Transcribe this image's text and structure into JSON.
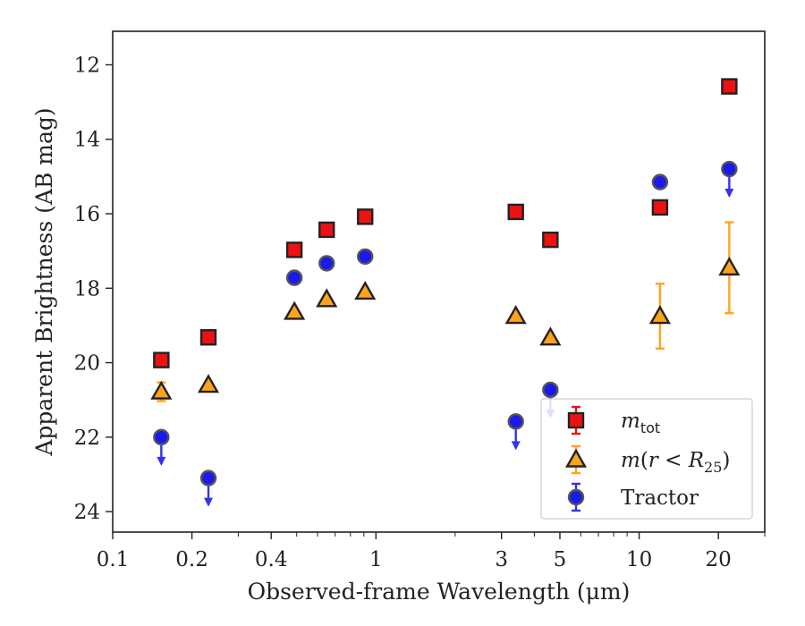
{
  "chart_data": {
    "type": "scatter",
    "xlabel": "Observed-frame Wavelength (μm)",
    "ylabel": "Apparent Brightness (AB mag)",
    "x_scale": "log",
    "xlim": [
      0.1,
      30
    ],
    "ylim": [
      24.55,
      11.1
    ],
    "y_inverted": true,
    "x_ticks": [
      {
        "value": 0.1,
        "label": "0.1"
      },
      {
        "value": 0.2,
        "label": "0.2"
      },
      {
        "value": 0.4,
        "label": "0.4"
      },
      {
        "value": 1,
        "label": "1"
      },
      {
        "value": 3,
        "label": "3"
      },
      {
        "value": 5,
        "label": "5"
      },
      {
        "value": 10,
        "label": "10"
      },
      {
        "value": 20,
        "label": "20"
      }
    ],
    "x_minor_ticks": [
      0.3,
      0.5,
      0.6,
      0.7,
      0.8,
      0.9,
      2,
      4,
      6,
      7,
      8,
      9,
      30
    ],
    "y_ticks": [
      {
        "value": 12,
        "label": "12"
      },
      {
        "value": 14,
        "label": "14"
      },
      {
        "value": 16,
        "label": "16"
      },
      {
        "value": 18,
        "label": "18"
      },
      {
        "value": 20,
        "label": "20"
      },
      {
        "value": 22,
        "label": "22"
      },
      {
        "value": 24,
        "label": "24"
      }
    ],
    "legend_position": "lower-right",
    "series": [
      {
        "name": "m_tot",
        "marker": "square",
        "color": "#ee1111",
        "error_color": "#ee1111",
        "points": [
          {
            "x": 0.153,
            "y": 19.93
          },
          {
            "x": 0.231,
            "y": 19.32
          },
          {
            "x": 0.49,
            "y": 16.97
          },
          {
            "x": 0.65,
            "y": 16.43
          },
          {
            "x": 0.91,
            "y": 16.08
          },
          {
            "x": 3.4,
            "y": 15.95
          },
          {
            "x": 4.6,
            "y": 16.7
          },
          {
            "x": 12.0,
            "y": 15.83
          },
          {
            "x": 22.0,
            "y": 12.58
          }
        ]
      },
      {
        "name": "m(r < R25)",
        "marker": "triangle",
        "color": "#ffa31a",
        "error_color": "#ffa31a",
        "points": [
          {
            "x": 0.153,
            "y": 20.78,
            "yerr": 0.25
          },
          {
            "x": 0.231,
            "y": 20.6
          },
          {
            "x": 0.49,
            "y": 18.64
          },
          {
            "x": 0.65,
            "y": 18.3
          },
          {
            "x": 0.91,
            "y": 18.1
          },
          {
            "x": 3.4,
            "y": 18.75
          },
          {
            "x": 4.6,
            "y": 19.33
          },
          {
            "x": 12.0,
            "y": 18.75,
            "yerr": 0.87
          },
          {
            "x": 22.0,
            "y": 17.45,
            "yerr": 1.22
          }
        ]
      },
      {
        "name": "Tractor",
        "marker": "circle",
        "color": "#1a1aee",
        "error_color": "#3333ee",
        "points": [
          {
            "x": 0.153,
            "y": 22.0,
            "upper_limit": true
          },
          {
            "x": 0.231,
            "y": 23.1,
            "upper_limit": true
          },
          {
            "x": 0.49,
            "y": 17.72
          },
          {
            "x": 0.65,
            "y": 17.33
          },
          {
            "x": 0.91,
            "y": 17.15
          },
          {
            "x": 3.4,
            "y": 21.58,
            "upper_limit": true
          },
          {
            "x": 4.6,
            "y": 20.73,
            "upper_limit": true
          },
          {
            "x": 12.0,
            "y": 15.15
          },
          {
            "x": 22.0,
            "y": 14.8,
            "upper_limit": true
          }
        ]
      }
    ]
  }
}
